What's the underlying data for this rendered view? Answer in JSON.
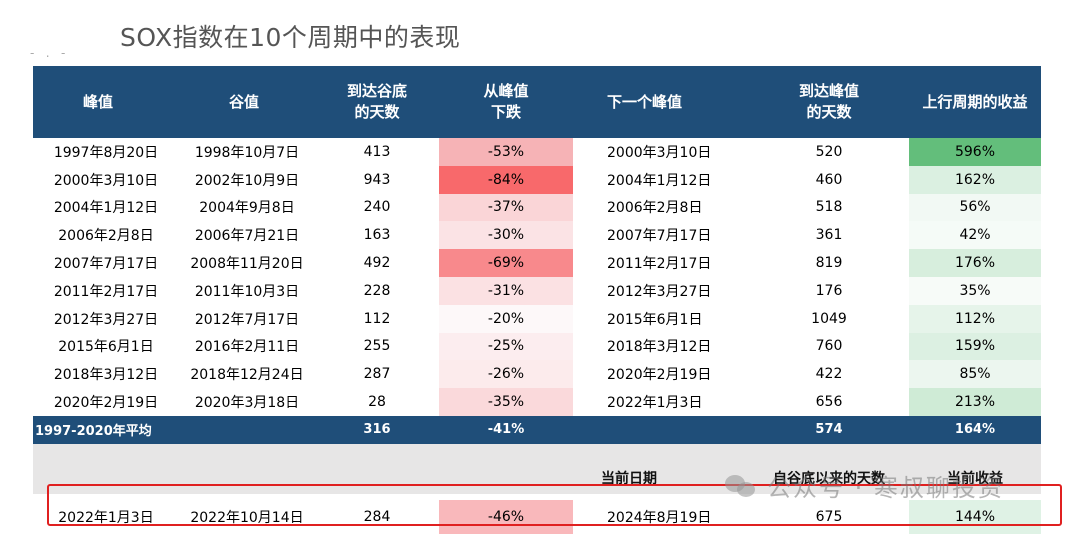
{
  "title": "SOX指数在10个周期中的表现",
  "columns": [
    "峰值",
    "谷值",
    "到达谷底\n的天数",
    "从峰值\n下跌",
    "下一个峰值",
    "到达峰值\n的天数",
    "上行周期的收益"
  ],
  "rows": [
    {
      "peak": "1997年8月20日",
      "trough": "1998年10月7日",
      "days_to_trough": "413",
      "drawdown": "-53%",
      "next_peak": "2000年3月10日",
      "days_to_peak": "520",
      "gain": "596%",
      "dd_color": "#f6b3b6",
      "gain_color": "#63be7b"
    },
    {
      "peak": "2000年3月10日",
      "trough": "2002年10月9日",
      "days_to_trough": "943",
      "drawdown": "-84%",
      "next_peak": "2004年1月12日",
      "days_to_peak": "460",
      "gain": "162%",
      "dd_color": "#f8696b",
      "gain_color": "#dbf0e1"
    },
    {
      "peak": "2004年1月12日",
      "trough": "2004年9月8日",
      "days_to_trough": "240",
      "drawdown": "-37%",
      "next_peak": "2006年2月8日",
      "days_to_peak": "518",
      "gain": "56%",
      "dd_color": "#fad5d7",
      "gain_color": "#f2f9f4"
    },
    {
      "peak": "2006年2月8日",
      "trough": "2006年7月21日",
      "days_to_trough": "163",
      "drawdown": "-30%",
      "next_peak": "2007年7月17日",
      "days_to_peak": "361",
      "gain": "42%",
      "dd_color": "#fbe3e5",
      "gain_color": "#f5fbf7"
    },
    {
      "peak": "2007年7月17日",
      "trough": "2008年11月20日",
      "days_to_trough": "492",
      "drawdown": "-69%",
      "next_peak": "2011年2月17日",
      "days_to_peak": "819",
      "gain": "176%",
      "dd_color": "#f8898c",
      "gain_color": "#d7eedd"
    },
    {
      "peak": "2011年2月17日",
      "trough": "2011年10月3日",
      "days_to_trough": "228",
      "drawdown": "-31%",
      "next_peak": "2012年3月27日",
      "days_to_peak": "176",
      "gain": "35%",
      "dd_color": "#fbe1e3",
      "gain_color": "#f7fbf8"
    },
    {
      "peak": "2012年3月27日",
      "trough": "2012年7月17日",
      "days_to_trough": "112",
      "drawdown": "-20%",
      "next_peak": "2015年6月1日",
      "days_to_peak": "1049",
      "gain": "112%",
      "dd_color": "#fdf8f9",
      "gain_color": "#e6f4ea"
    },
    {
      "peak": "2015年6月1日",
      "trough": "2016年2月11日",
      "days_to_trough": "255",
      "drawdown": "-25%",
      "next_peak": "2018年3月12日",
      "days_to_peak": "760",
      "gain": "159%",
      "dd_color": "#fcedef",
      "gain_color": "#dcf0e2"
    },
    {
      "peak": "2018年3月12日",
      "trough": "2018年12月24日",
      "days_to_trough": "287",
      "drawdown": "-26%",
      "next_peak": "2020年2月19日",
      "days_to_peak": "422",
      "gain": "85%",
      "dd_color": "#fcebec",
      "gain_color": "#ecf6ef"
    },
    {
      "peak": "2020年2月19日",
      "trough": "2020年3月18日",
      "days_to_trough": "28",
      "drawdown": "-35%",
      "next_peak": "2022年1月3日",
      "days_to_peak": "656",
      "gain": "213%",
      "dd_color": "#fad9db",
      "gain_color": "#cfebd6"
    }
  ],
  "average": {
    "label": "1997-2020年平均",
    "days_to_trough": "316",
    "drawdown": "-41%",
    "days_to_peak": "574",
    "gain": "164%"
  },
  "current_headers": {
    "date": "当前日期",
    "days_since": "自谷底以来的天数",
    "gain": "当前收益"
  },
  "current": {
    "peak": "2022年1月3日",
    "trough": "2022年10月14日",
    "days_to_trough": "284",
    "drawdown": "-46%",
    "date": "2024年8月19日",
    "days_since": "675",
    "gain": "144%",
    "dd_color": "#f9b8bb",
    "gain_color": "#dff2e5"
  },
  "watermark": "公众号 · 寒叔聊投资",
  "colors": {
    "header_bg": "#1f4e79",
    "highlight_border": "#e02020",
    "gray_band": "#e7e6e6"
  }
}
